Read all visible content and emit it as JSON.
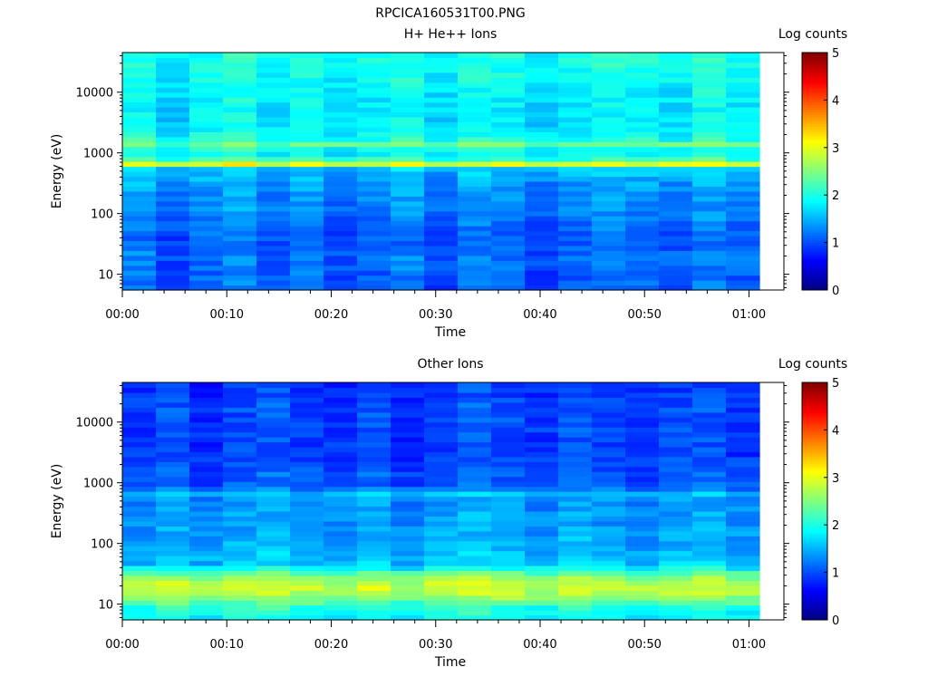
{
  "figure_title": "RPCICA160531T00.PNG",
  "chart_data": [
    {
      "type": "heatmap",
      "title": "H+ He++ Ions",
      "xlabel": "Time",
      "ylabel": "Energy (eV)",
      "x_ticks": [
        "00:00",
        "00:10",
        "00:20",
        "00:30",
        "00:40",
        "00:50",
        "01:00"
      ],
      "x_range_minutes": [
        0,
        61
      ],
      "y_scale": "log",
      "y_ticks": [
        10,
        100,
        1000,
        10000
      ],
      "y_tick_labels": [
        "10",
        "100",
        "1000",
        "10000"
      ],
      "y_range": [
        5.5,
        45000
      ],
      "colorbar": {
        "label": "Log counts",
        "ticks": [
          "0",
          "1",
          "2",
          "3",
          "4",
          "5"
        ],
        "range": [
          0,
          5
        ],
        "colormap": "jet"
      },
      "profile": {
        "energy_eV": [
          6,
          12,
          20,
          35,
          60,
          100,
          200,
          400,
          550,
          650,
          750,
          900,
          1200,
          1450,
          1700,
          2500,
          5000,
          10000,
          20000,
          45000
        ],
        "log_counts": [
          1.05,
          1.1,
          1.15,
          1.0,
          1.15,
          1.2,
          1.3,
          1.45,
          1.6,
          3.0,
          2.3,
          1.8,
          1.95,
          2.5,
          1.95,
          1.8,
          1.75,
          1.8,
          1.9,
          1.95
        ]
      },
      "time_modulation": [
        0.15,
        -0.15,
        0.05,
        0.2,
        -0.05,
        0.1,
        -0.1,
        0.0,
        0.15,
        -0.1,
        0.1,
        0.05,
        -0.15,
        0.0,
        0.1,
        0.05,
        -0.05,
        0.15,
        0.0
      ]
    },
    {
      "type": "heatmap",
      "title": "Other Ions",
      "xlabel": "Time",
      "ylabel": "Energy (eV)",
      "x_ticks": [
        "00:00",
        "00:10",
        "00:20",
        "00:30",
        "00:40",
        "00:50",
        "01:00"
      ],
      "x_range_minutes": [
        0,
        61
      ],
      "y_scale": "log",
      "y_ticks": [
        10,
        100,
        1000,
        10000
      ],
      "y_tick_labels": [
        "10",
        "100",
        "1000",
        "10000"
      ],
      "y_range": [
        5.5,
        45000
      ],
      "colorbar": {
        "label": "Log counts",
        "ticks": [
          "0",
          "1",
          "2",
          "3",
          "4",
          "5"
        ],
        "range": [
          0,
          5
        ],
        "colormap": "jet"
      },
      "profile": {
        "energy_eV": [
          6,
          9,
          12,
          18,
          25,
          32,
          45,
          80,
          150,
          300,
          500,
          650,
          720,
          800,
          1000,
          1500,
          3000,
          8000,
          20000,
          45000
        ],
        "log_counts": [
          1.9,
          2.0,
          2.5,
          2.85,
          2.7,
          2.3,
          1.6,
          1.5,
          1.4,
          1.35,
          1.3,
          1.45,
          1.8,
          1.2,
          1.0,
          1.05,
          0.9,
          0.95,
          0.95,
          0.85
        ]
      },
      "time_modulation": [
        -0.05,
        0.1,
        -0.1,
        0.05,
        0.15,
        0.0,
        -0.05,
        0.1,
        -0.1,
        0.05,
        0.15,
        0.05,
        -0.05,
        0.1,
        0.0,
        -0.1,
        0.05,
        0.1,
        -0.05
      ]
    }
  ]
}
